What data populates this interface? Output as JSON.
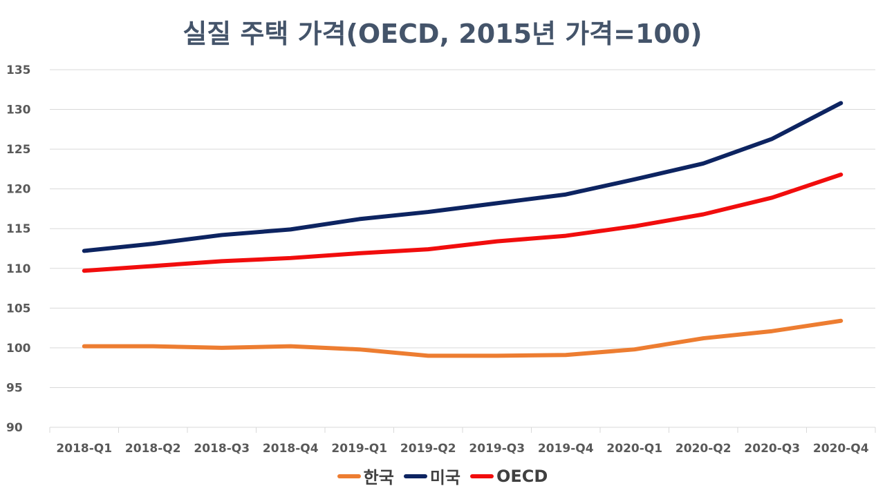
{
  "chart_data": {
    "type": "line",
    "title": "실질 주택 가격(OECD, 2015년 가격=100)",
    "categories": [
      "2018-Q1",
      "2018-Q2",
      "2018-Q3",
      "2018-Q4",
      "2019-Q1",
      "2019-Q2",
      "2019-Q3",
      "2019-Q4",
      "2020-Q1",
      "2020-Q2",
      "2020-Q3",
      "2020-Q4"
    ],
    "ylim": [
      90,
      135
    ],
    "yticks": [
      90,
      95,
      100,
      105,
      110,
      115,
      120,
      125,
      130,
      135
    ],
    "grid": true,
    "legend_position": "bottom",
    "series": [
      {
        "name": "한국",
        "color": "#ed7d31",
        "values": [
          100.2,
          100.2,
          100.0,
          100.2,
          99.8,
          99.0,
          99.0,
          99.1,
          99.8,
          101.2,
          102.1,
          103.4
        ]
      },
      {
        "name": "미국",
        "color": "#0d2461",
        "values": [
          112.2,
          113.1,
          114.2,
          114.9,
          116.2,
          117.1,
          118.2,
          119.3,
          121.2,
          123.2,
          126.3,
          130.8
        ]
      },
      {
        "name": "OECD",
        "color": "#f10d0d",
        "values": [
          109.7,
          110.3,
          110.9,
          111.3,
          111.9,
          112.4,
          113.4,
          114.1,
          115.3,
          116.8,
          118.9,
          121.8
        ]
      }
    ]
  }
}
